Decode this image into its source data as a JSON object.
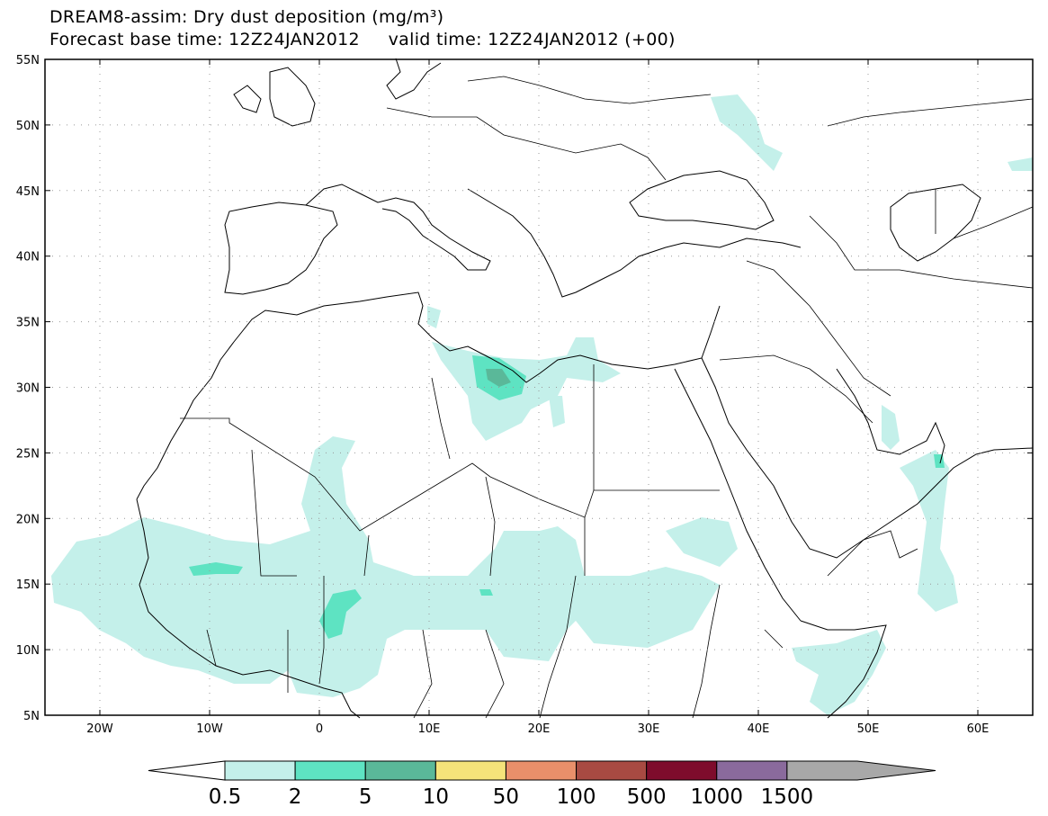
{
  "title": "DREAM8-assim: Dry dust deposition (mg/m³)",
  "subtitle": "Forecast base time: 12Z24JAN2012     valid time: 12Z24JAN2012 (+00)",
  "map": {
    "lon_range": [
      -25,
      65
    ],
    "lat_range": [
      5,
      55
    ],
    "lat_labels": [
      "55N",
      "50N",
      "45N",
      "40N",
      "35N",
      "30N",
      "25N",
      "20N",
      "15N",
      "10N",
      "5N"
    ],
    "lon_labels": [
      "20W",
      "10W",
      "0",
      "10E",
      "20E",
      "30E",
      "40E",
      "50E",
      "60E"
    ]
  },
  "legend": {
    "levels": [
      "0.5",
      "2",
      "5",
      "10",
      "50",
      "100",
      "500",
      "1000",
      "1500"
    ],
    "colors": [
      "#c4f0ea",
      "#5ee3c2",
      "#5ab899",
      "#f5e37a",
      "#e98f6a",
      "#a84a42",
      "#7e0c2c",
      "#8a6a9c",
      "#a8a8a8"
    ]
  }
}
